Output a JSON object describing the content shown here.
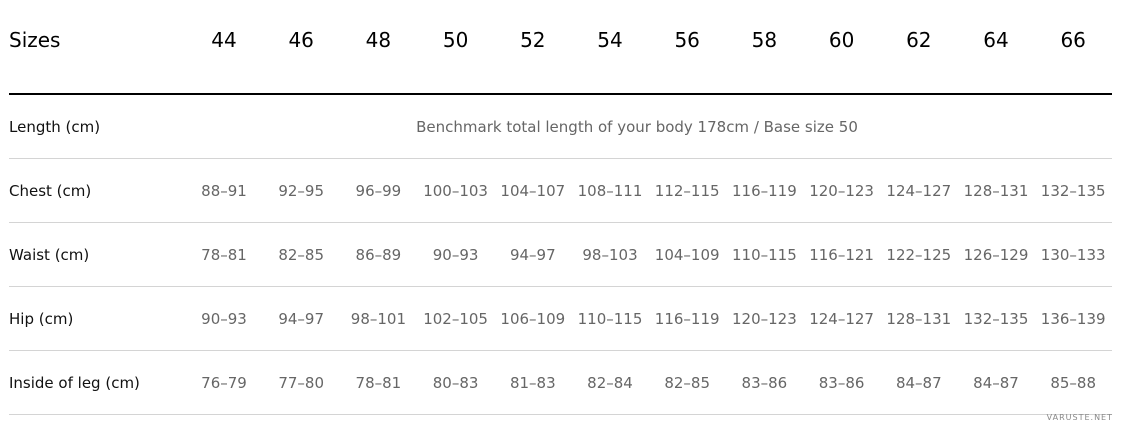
{
  "header": {
    "title": "Sizes",
    "sizes": [
      "44",
      "46",
      "48",
      "50",
      "52",
      "54",
      "56",
      "58",
      "60",
      "62",
      "64",
      "66"
    ]
  },
  "table": {
    "rows": [
      {
        "label": "Length (cm)",
        "note": "Benchmark total length of your body 178cm / Base size 50"
      },
      {
        "label": "Chest (cm)",
        "values": [
          "88–91",
          "92–95",
          "96–99",
          "100–103",
          "104–107",
          "108–111",
          "112–115",
          "116–119",
          "120–123",
          "124–127",
          "128–131",
          "132–135"
        ]
      },
      {
        "label": "Waist (cm)",
        "values": [
          "78–81",
          "82–85",
          "86–89",
          "90–93",
          "94–97",
          "98–103",
          "104–109",
          "110–115",
          "116–121",
          "122–125",
          "126–129",
          "130–133"
        ]
      },
      {
        "label": "Hip (cm)",
        "values": [
          "90–93",
          "94–97",
          "98–101",
          "102–105",
          "106–109",
          "110–115",
          "116–119",
          "120–123",
          "124–127",
          "128–131",
          "132–135",
          "136–139"
        ]
      },
      {
        "label": "Inside of leg (cm)",
        "values": [
          "76–79",
          "77–80",
          "78–81",
          "80–83",
          "81–83",
          "82–84",
          "82–85",
          "83–86",
          "83–86",
          "84–87",
          "84–87",
          "85–88"
        ]
      }
    ]
  },
  "watermark": "VARUSTE.NET"
}
